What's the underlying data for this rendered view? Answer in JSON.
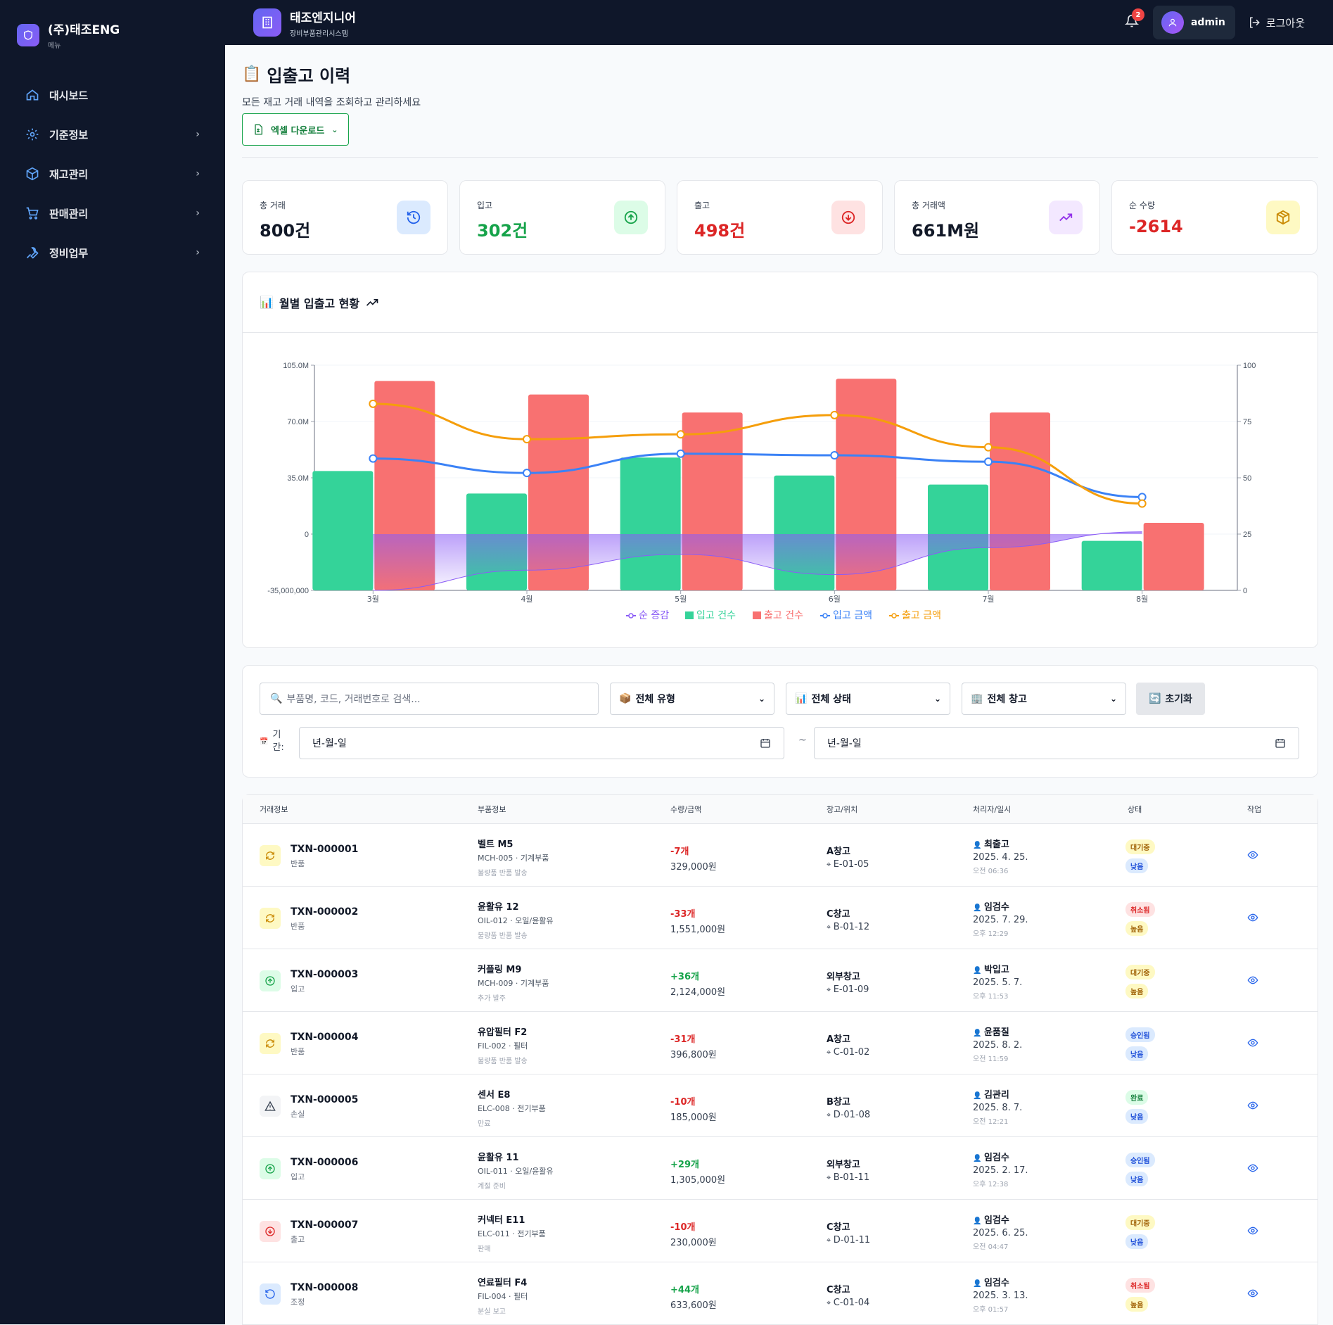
{
  "sidebar": {
    "brand": "(주)태조ENG",
    "brand_sub": "메뉴",
    "items": [
      {
        "label": "대시보드",
        "icon": "home-icon"
      },
      {
        "label": "기준정보",
        "icon": "gear-icon"
      },
      {
        "label": "재고관리",
        "icon": "box-icon"
      },
      {
        "label": "판매관리",
        "icon": "cart-icon"
      },
      {
        "label": "정비업무",
        "icon": "wrench-icon"
      }
    ]
  },
  "topbar": {
    "title": "태조엔지니어",
    "subtitle": "장비부품관리시스템",
    "notifications": "2",
    "user": "admin",
    "logout": "로그아웃"
  },
  "page": {
    "title": "입출고 이력",
    "description": "모든 재고 거래 내역을 조회하고 관리하세요",
    "excel_button": "엑셀 다운로드"
  },
  "stats": [
    {
      "label": "총 거래",
      "value": "800건",
      "color": "#111827",
      "icon_bg": "#dbeafe",
      "icon_color": "#2563eb"
    },
    {
      "label": "입고",
      "value": "302건",
      "color": "#16a34a",
      "icon_bg": "#dcfce7",
      "icon_color": "#16a34a"
    },
    {
      "label": "출고",
      "value": "498건",
      "color": "#dc2626",
      "icon_bg": "#fee2e2",
      "icon_color": "#dc2626"
    },
    {
      "label": "총 거래액",
      "value": "661M원",
      "color": "#111827",
      "icon_bg": "#f3e8ff",
      "icon_color": "#9333ea"
    },
    {
      "label": "순 수량",
      "value": "-2614",
      "color": "#dc2626",
      "icon_bg": "#fef9c3",
      "icon_color": "#ca8a04"
    }
  ],
  "chart_title": "월별 입출고 현황",
  "chart_data": {
    "type": "bar",
    "categories": [
      "3월",
      "4월",
      "5월",
      "6월",
      "7월",
      "8월"
    ],
    "left_axis": {
      "ticks": [
        "105.0M",
        "70.0M",
        "35.0M",
        "0",
        "-35,000,000"
      ],
      "range": [
        -35000000,
        105000000
      ]
    },
    "right_axis": {
      "ticks": [
        "100",
        "75",
        "50",
        "25",
        "0"
      ],
      "range": [
        0,
        100
      ]
    },
    "series": [
      {
        "name": "순 증감",
        "type": "area",
        "axis": "right",
        "color": "#8b5cf6",
        "values": [
          0,
          9,
          16,
          7,
          19,
          26
        ]
      },
      {
        "name": "입고 건수",
        "type": "bar",
        "axis": "right",
        "color": "#34d399",
        "values": [
          53,
          43,
          59,
          51,
          47,
          22
        ]
      },
      {
        "name": "출고 건수",
        "type": "bar",
        "axis": "right",
        "color": "#f87171",
        "values": [
          93,
          87,
          79,
          94,
          79,
          30
        ]
      },
      {
        "name": "입고 금액",
        "type": "line",
        "axis": "left",
        "color": "#3b82f6",
        "values": [
          47000000,
          38000000,
          50000000,
          49000000,
          45000000,
          23000000
        ]
      },
      {
        "name": "출고 금액",
        "type": "line",
        "axis": "left",
        "color": "#f59e0b",
        "values": [
          81000000,
          59000000,
          62000000,
          74000000,
          54000000,
          19000000
        ]
      }
    ]
  },
  "filters": {
    "search_placeholder": "부품명, 코드, 거래번호로 검색...",
    "type": "전체 유형",
    "status": "전체 상태",
    "warehouse": "전체 창고",
    "reset": "초기화",
    "period_label": "기간:",
    "date_from": "년-월-일",
    "date_to": "년-월-일",
    "tilde": "~"
  },
  "table": {
    "headers": [
      "거래정보",
      "부품정보",
      "수량/금액",
      "창고/위치",
      "처리자/일시",
      "상태",
      "작업"
    ],
    "rows": [
      {
        "id": "TXN-000001",
        "type": "반품",
        "icon": "refresh-icon",
        "part": "벨트 M5",
        "code": "MCH-005 · 기계부품",
        "note": "불량품 반품 발송",
        "qty": "-7개",
        "amount": "329,000원",
        "warehouse": "A창고",
        "location": "E-01-05",
        "user": "최출고",
        "date": "2025. 4. 25.",
        "time": "오전 06:36",
        "status": "대기중",
        "priority": "낮음"
      },
      {
        "id": "TXN-000002",
        "type": "반품",
        "icon": "refresh-icon",
        "part": "윤활유 12",
        "code": "OIL-012 · 오일/윤활유",
        "note": "불량품 반품 발송",
        "qty": "-33개",
        "amount": "1,551,000원",
        "warehouse": "C창고",
        "location": "B-01-12",
        "user": "임검수",
        "date": "2025. 7. 29.",
        "time": "오후 12:29",
        "status": "취소됨",
        "priority": "높음"
      },
      {
        "id": "TXN-000003",
        "type": "입고",
        "icon": "arrow-up-circle-icon",
        "part": "커플링 M9",
        "code": "MCH-009 · 기계부품",
        "note": "추가 발주",
        "qty": "+36개",
        "amount": "2,124,000원",
        "warehouse": "외부창고",
        "location": "E-01-09",
        "user": "박입고",
        "date": "2025. 5. 7.",
        "time": "오후 11:53",
        "status": "대기중",
        "priority": "높음"
      },
      {
        "id": "TXN-000004",
        "type": "반품",
        "icon": "refresh-icon",
        "part": "유압필터 F2",
        "code": "FIL-002 · 필터",
        "note": "불량품 반품 발송",
        "qty": "-31개",
        "amount": "396,800원",
        "warehouse": "A창고",
        "location": "C-01-02",
        "user": "윤품질",
        "date": "2025. 8. 2.",
        "time": "오전 11:59",
        "status": "승인됨",
        "priority": "낮음"
      },
      {
        "id": "TXN-000005",
        "type": "손실",
        "icon": "warning-icon",
        "part": "센서 E8",
        "code": "ELC-008 · 전기부품",
        "note": "만료",
        "qty": "-10개",
        "amount": "185,000원",
        "warehouse": "B창고",
        "location": "D-01-08",
        "user": "김관리",
        "date": "2025. 8. 7.",
        "time": "오전 12:21",
        "status": "완료",
        "priority": "낮음"
      },
      {
        "id": "TXN-000006",
        "type": "입고",
        "icon": "arrow-up-circle-icon",
        "part": "윤활유 11",
        "code": "OIL-011 · 오일/윤활유",
        "note": "계절 준비",
        "qty": "+29개",
        "amount": "1,305,000원",
        "warehouse": "외부창고",
        "location": "B-01-11",
        "user": "임검수",
        "date": "2025. 2. 17.",
        "time": "오후 12:38",
        "status": "승인됨",
        "priority": "낮음"
      },
      {
        "id": "TXN-000007",
        "type": "출고",
        "icon": "arrow-down-circle-icon",
        "part": "커넥터 E11",
        "code": "ELC-011 · 전기부품",
        "note": "판매",
        "qty": "-10개",
        "amount": "230,000원",
        "warehouse": "C창고",
        "location": "D-01-11",
        "user": "임검수",
        "date": "2025. 6. 25.",
        "time": "오전 04:47",
        "status": "대기중",
        "priority": "낮음"
      },
      {
        "id": "TXN-000008",
        "type": "조정",
        "icon": "rotate-icon",
        "part": "연료필터 F4",
        "code": "FIL-004 · 필터",
        "note": "분실 보고",
        "qty": "+44개",
        "amount": "633,600원",
        "warehouse": "C창고",
        "location": "C-01-04",
        "user": "임검수",
        "date": "2025. 3. 13.",
        "time": "오후 01:57",
        "status": "취소됨",
        "priority": "높음"
      }
    ]
  }
}
